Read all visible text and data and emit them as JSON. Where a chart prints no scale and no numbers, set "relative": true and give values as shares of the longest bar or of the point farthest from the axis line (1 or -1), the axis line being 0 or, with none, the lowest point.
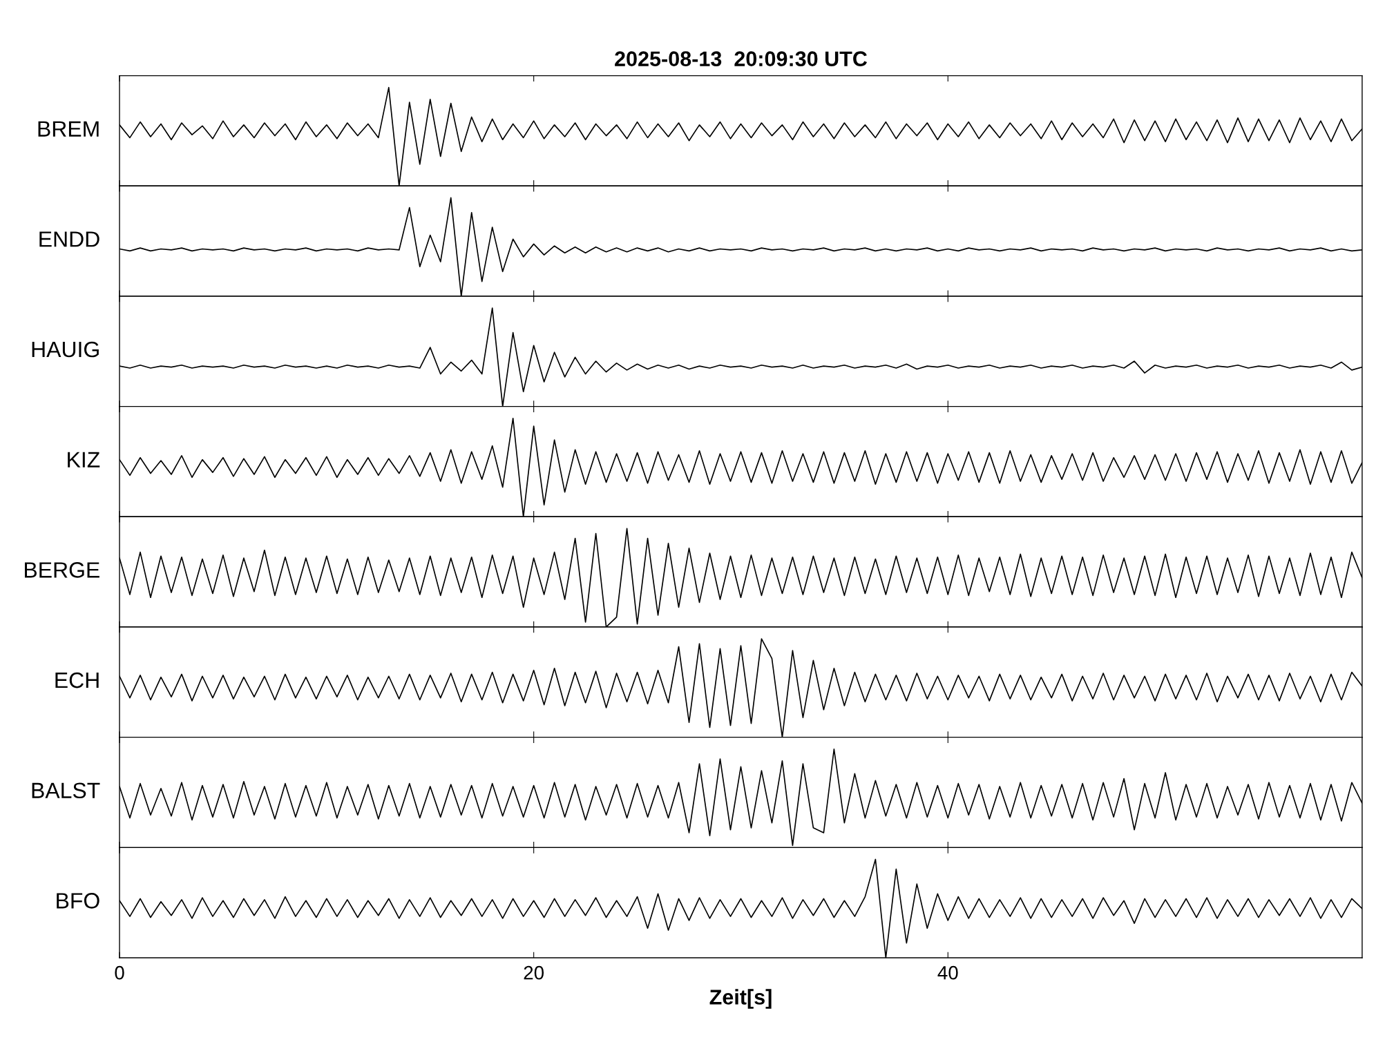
{
  "chart_data": [
    {
      "type": "line",
      "title": "2025-08-13  20:09:30 UTC",
      "ylabel": "BREM",
      "relative": true,
      "xlim": [
        0,
        60
      ],
      "xticks": [
        0,
        20,
        40
      ],
      "tick_labels": false,
      "grid": false,
      "legend": false,
      "x": [
        0,
        0.5,
        1,
        1.5,
        2,
        2.5,
        3,
        3.5,
        4,
        4.5,
        5,
        5.5,
        6,
        6.5,
        7,
        7.5,
        8,
        8.5,
        9,
        9.5,
        10,
        10.5,
        11,
        11.5,
        12,
        12.5,
        13,
        13.5,
        14,
        14.5,
        15,
        15.5,
        16,
        16.5,
        17,
        17.5,
        18,
        18.5,
        19,
        19.5,
        20,
        20.5,
        21,
        21.5,
        22,
        22.5,
        23,
        23.5,
        24,
        24.5,
        25,
        25.5,
        26,
        26.5,
        27,
        27.5,
        28,
        28.5,
        29,
        29.5,
        30,
        30.5,
        31,
        31.5,
        32,
        32.5,
        33,
        33.5,
        34,
        34.5,
        35,
        35.5,
        36,
        36.5,
        37,
        37.5,
        38,
        38.5,
        39,
        39.5,
        40,
        40.5,
        41,
        41.5,
        42,
        42.5,
        43,
        43.5,
        44,
        44.5,
        45,
        45.5,
        46,
        46.5,
        47,
        47.5,
        48,
        48.5,
        49,
        49.5,
        50,
        50.5,
        51,
        51.5,
        52,
        52.5,
        53,
        53.5,
        54,
        54.5,
        55,
        55.5,
        56,
        56.5,
        57,
        57.5,
        58,
        58.5,
        59,
        59.5,
        60
      ],
      "series": [
        {
          "color": "#000000",
          "values": [
            0.62,
            0.49,
            0.65,
            0.5,
            0.63,
            0.47,
            0.64,
            0.52,
            0.61,
            0.48,
            0.66,
            0.5,
            0.62,
            0.49,
            0.64,
            0.51,
            0.63,
            0.47,
            0.65,
            0.5,
            0.62,
            0.48,
            0.64,
            0.51,
            0.63,
            0.49,
            1.0,
            0.0,
            0.85,
            0.22,
            0.88,
            0.3,
            0.84,
            0.35,
            0.7,
            0.45,
            0.68,
            0.47,
            0.63,
            0.49,
            0.66,
            0.48,
            0.62,
            0.5,
            0.64,
            0.47,
            0.63,
            0.51,
            0.62,
            0.48,
            0.65,
            0.49,
            0.63,
            0.5,
            0.64,
            0.46,
            0.62,
            0.5,
            0.65,
            0.48,
            0.63,
            0.49,
            0.64,
            0.51,
            0.62,
            0.47,
            0.65,
            0.5,
            0.63,
            0.48,
            0.64,
            0.5,
            0.62,
            0.49,
            0.65,
            0.48,
            0.63,
            0.51,
            0.64,
            0.47,
            0.63,
            0.5,
            0.65,
            0.48,
            0.62,
            0.49,
            0.64,
            0.51,
            0.63,
            0.48,
            0.66,
            0.47,
            0.64,
            0.5,
            0.63,
            0.49,
            0.68,
            0.44,
            0.67,
            0.46,
            0.66,
            0.45,
            0.68,
            0.47,
            0.65,
            0.46,
            0.67,
            0.44,
            0.69,
            0.45,
            0.68,
            0.46,
            0.67,
            0.44,
            0.69,
            0.47,
            0.66,
            0.45,
            0.68,
            0.46,
            0.58
          ]
        }
      ]
    },
    {
      "type": "line",
      "ylabel": "ENDD",
      "relative": true,
      "xlim": [
        0,
        60
      ],
      "xticks": [
        0,
        20,
        40
      ],
      "tick_labels": false,
      "grid": false,
      "legend": false,
      "x": [
        0,
        0.5,
        1,
        1.5,
        2,
        2.5,
        3,
        3.5,
        4,
        4.5,
        5,
        5.5,
        6,
        6.5,
        7,
        7.5,
        8,
        8.5,
        9,
        9.5,
        10,
        10.5,
        11,
        11.5,
        12,
        12.5,
        13,
        13.5,
        14,
        14.5,
        15,
        15.5,
        16,
        16.5,
        17,
        17.5,
        18,
        18.5,
        19,
        19.5,
        20,
        20.5,
        21,
        21.5,
        22,
        22.5,
        23,
        23.5,
        24,
        24.5,
        25,
        25.5,
        26,
        26.5,
        27,
        27.5,
        28,
        28.5,
        29,
        29.5,
        30,
        30.5,
        31,
        31.5,
        32,
        32.5,
        33,
        33.5,
        34,
        34.5,
        35,
        35.5,
        36,
        36.5,
        37,
        37.5,
        38,
        38.5,
        39,
        39.5,
        40,
        40.5,
        41,
        41.5,
        42,
        42.5,
        43,
        43.5,
        44,
        44.5,
        45,
        45.5,
        46,
        46.5,
        47,
        47.5,
        48,
        48.5,
        49,
        49.5,
        50,
        50.5,
        51,
        51.5,
        52,
        52.5,
        53,
        53.5,
        54,
        54.5,
        55,
        55.5,
        56,
        56.5,
        57,
        57.5,
        58,
        58.5,
        59,
        59.5,
        60
      ],
      "series": [
        {
          "color": "#000000",
          "values": [
            0.48,
            0.46,
            0.49,
            0.46,
            0.48,
            0.47,
            0.49,
            0.46,
            0.48,
            0.47,
            0.48,
            0.46,
            0.49,
            0.47,
            0.48,
            0.46,
            0.48,
            0.47,
            0.49,
            0.46,
            0.48,
            0.47,
            0.48,
            0.46,
            0.49,
            0.47,
            0.48,
            0.47,
            0.9,
            0.3,
            0.62,
            0.35,
            1.0,
            0.0,
            0.85,
            0.15,
            0.7,
            0.25,
            0.58,
            0.4,
            0.53,
            0.42,
            0.51,
            0.44,
            0.5,
            0.44,
            0.5,
            0.45,
            0.49,
            0.45,
            0.49,
            0.46,
            0.49,
            0.45,
            0.48,
            0.46,
            0.49,
            0.46,
            0.48,
            0.47,
            0.48,
            0.46,
            0.49,
            0.47,
            0.48,
            0.46,
            0.48,
            0.47,
            0.49,
            0.46,
            0.48,
            0.47,
            0.49,
            0.46,
            0.48,
            0.46,
            0.48,
            0.47,
            0.49,
            0.46,
            0.48,
            0.46,
            0.49,
            0.47,
            0.48,
            0.46,
            0.48,
            0.47,
            0.49,
            0.46,
            0.48,
            0.47,
            0.48,
            0.46,
            0.49,
            0.47,
            0.48,
            0.46,
            0.48,
            0.47,
            0.49,
            0.46,
            0.48,
            0.47,
            0.48,
            0.46,
            0.49,
            0.47,
            0.48,
            0.46,
            0.48,
            0.47,
            0.49,
            0.46,
            0.48,
            0.47,
            0.49,
            0.46,
            0.48,
            0.46,
            0.47
          ]
        }
      ]
    },
    {
      "type": "line",
      "ylabel": "HAUIG",
      "relative": true,
      "xlim": [
        0,
        60
      ],
      "xticks": [
        0,
        20,
        40
      ],
      "tick_labels": false,
      "grid": false,
      "legend": false,
      "x": [
        0,
        0.5,
        1,
        1.5,
        2,
        2.5,
        3,
        3.5,
        4,
        4.5,
        5,
        5.5,
        6,
        6.5,
        7,
        7.5,
        8,
        8.5,
        9,
        9.5,
        10,
        10.5,
        11,
        11.5,
        12,
        12.5,
        13,
        13.5,
        14,
        14.5,
        15,
        15.5,
        16,
        16.5,
        17,
        17.5,
        18,
        18.5,
        19,
        19.5,
        20,
        20.5,
        21,
        21.5,
        22,
        22.5,
        23,
        23.5,
        24,
        24.5,
        25,
        25.5,
        26,
        26.5,
        27,
        27.5,
        28,
        28.5,
        29,
        29.5,
        30,
        30.5,
        31,
        31.5,
        32,
        32.5,
        33,
        33.5,
        34,
        34.5,
        35,
        35.5,
        36,
        36.5,
        37,
        37.5,
        38,
        38.5,
        39,
        39.5,
        40,
        40.5,
        41,
        41.5,
        42,
        42.5,
        43,
        43.5,
        44,
        44.5,
        45,
        45.5,
        46,
        46.5,
        47,
        47.5,
        48,
        48.5,
        49,
        49.5,
        50,
        50.5,
        51,
        51.5,
        52,
        52.5,
        53,
        53.5,
        54,
        54.5,
        55,
        55.5,
        56,
        56.5,
        57,
        57.5,
        58,
        58.5,
        59,
        59.5,
        60
      ],
      "series": [
        {
          "color": "#000000",
          "values": [
            0.41,
            0.39,
            0.42,
            0.39,
            0.41,
            0.4,
            0.42,
            0.39,
            0.41,
            0.4,
            0.41,
            0.39,
            0.42,
            0.4,
            0.41,
            0.39,
            0.42,
            0.4,
            0.41,
            0.39,
            0.41,
            0.39,
            0.42,
            0.4,
            0.41,
            0.39,
            0.42,
            0.4,
            0.41,
            0.39,
            0.6,
            0.33,
            0.45,
            0.36,
            0.47,
            0.33,
            1.0,
            0.0,
            0.75,
            0.15,
            0.62,
            0.25,
            0.55,
            0.3,
            0.5,
            0.33,
            0.46,
            0.35,
            0.44,
            0.37,
            0.43,
            0.38,
            0.42,
            0.39,
            0.42,
            0.38,
            0.41,
            0.39,
            0.42,
            0.4,
            0.41,
            0.39,
            0.42,
            0.4,
            0.41,
            0.39,
            0.42,
            0.39,
            0.41,
            0.4,
            0.42,
            0.39,
            0.41,
            0.4,
            0.42,
            0.39,
            0.43,
            0.38,
            0.41,
            0.4,
            0.42,
            0.39,
            0.41,
            0.4,
            0.42,
            0.39,
            0.41,
            0.4,
            0.42,
            0.39,
            0.41,
            0.4,
            0.42,
            0.39,
            0.41,
            0.4,
            0.42,
            0.39,
            0.46,
            0.34,
            0.42,
            0.39,
            0.41,
            0.4,
            0.42,
            0.39,
            0.41,
            0.4,
            0.42,
            0.39,
            0.41,
            0.4,
            0.42,
            0.39,
            0.41,
            0.4,
            0.42,
            0.39,
            0.45,
            0.37,
            0.4
          ]
        }
      ]
    },
    {
      "type": "line",
      "ylabel": "KIZ",
      "relative": true,
      "xlim": [
        0,
        60
      ],
      "xticks": [
        0,
        20,
        40
      ],
      "tick_labels": false,
      "grid": false,
      "legend": false,
      "x": [
        0,
        0.5,
        1,
        1.5,
        2,
        2.5,
        3,
        3.5,
        4,
        4.5,
        5,
        5.5,
        6,
        6.5,
        7,
        7.5,
        8,
        8.5,
        9,
        9.5,
        10,
        10.5,
        11,
        11.5,
        12,
        12.5,
        13,
        13.5,
        14,
        14.5,
        15,
        15.5,
        16,
        16.5,
        17,
        17.5,
        18,
        18.5,
        19,
        19.5,
        20,
        20.5,
        21,
        21.5,
        22,
        22.5,
        23,
        23.5,
        24,
        24.5,
        25,
        25.5,
        26,
        26.5,
        27,
        27.5,
        28,
        28.5,
        29,
        29.5,
        30,
        30.5,
        31,
        31.5,
        32,
        32.5,
        33,
        33.5,
        34,
        34.5,
        35,
        35.5,
        36,
        36.5,
        37,
        37.5,
        38,
        38.5,
        39,
        39.5,
        40,
        40.5,
        41,
        41.5,
        42,
        42.5,
        43,
        43.5,
        44,
        44.5,
        45,
        45.5,
        46,
        46.5,
        47,
        47.5,
        48,
        48.5,
        49,
        49.5,
        50,
        50.5,
        51,
        51.5,
        52,
        52.5,
        53,
        53.5,
        54,
        54.5,
        55,
        55.5,
        56,
        56.5,
        57,
        57.5,
        58,
        58.5,
        59,
        59.5,
        60
      ],
      "series": [
        {
          "color": "#000000",
          "values": [
            0.58,
            0.42,
            0.6,
            0.44,
            0.57,
            0.43,
            0.62,
            0.4,
            0.58,
            0.45,
            0.6,
            0.41,
            0.59,
            0.43,
            0.61,
            0.4,
            0.58,
            0.44,
            0.6,
            0.42,
            0.61,
            0.4,
            0.58,
            0.43,
            0.6,
            0.42,
            0.59,
            0.44,
            0.62,
            0.41,
            0.65,
            0.36,
            0.68,
            0.34,
            0.66,
            0.38,
            0.72,
            0.3,
            1.0,
            0.0,
            0.92,
            0.12,
            0.78,
            0.25,
            0.68,
            0.33,
            0.66,
            0.35,
            0.64,
            0.36,
            0.65,
            0.34,
            0.66,
            0.37,
            0.63,
            0.35,
            0.67,
            0.33,
            0.64,
            0.36,
            0.66,
            0.35,
            0.65,
            0.34,
            0.67,
            0.36,
            0.64,
            0.35,
            0.66,
            0.34,
            0.65,
            0.36,
            0.67,
            0.33,
            0.64,
            0.35,
            0.66,
            0.36,
            0.65,
            0.34,
            0.64,
            0.37,
            0.66,
            0.35,
            0.65,
            0.34,
            0.67,
            0.36,
            0.63,
            0.35,
            0.62,
            0.38,
            0.64,
            0.37,
            0.65,
            0.36,
            0.6,
            0.4,
            0.62,
            0.38,
            0.63,
            0.37,
            0.64,
            0.36,
            0.65,
            0.38,
            0.66,
            0.35,
            0.64,
            0.37,
            0.67,
            0.34,
            0.65,
            0.36,
            0.68,
            0.33,
            0.66,
            0.35,
            0.67,
            0.34,
            0.55
          ]
        }
      ]
    },
    {
      "type": "line",
      "ylabel": "BERGE",
      "relative": true,
      "xlim": [
        0,
        60
      ],
      "xticks": [
        0,
        20,
        40
      ],
      "tick_labels": false,
      "grid": false,
      "legend": false,
      "x": [
        0,
        0.5,
        1,
        1.5,
        2,
        2.5,
        3,
        3.5,
        4,
        4.5,
        5,
        5.5,
        6,
        6.5,
        7,
        7.5,
        8,
        8.5,
        9,
        9.5,
        10,
        10.5,
        11,
        11.5,
        12,
        12.5,
        13,
        13.5,
        14,
        14.5,
        15,
        15.5,
        16,
        16.5,
        17,
        17.5,
        18,
        18.5,
        19,
        19.5,
        20,
        20.5,
        21,
        21.5,
        22,
        22.5,
        23,
        23.5,
        24,
        24.5,
        25,
        25.5,
        26,
        26.5,
        27,
        27.5,
        28,
        28.5,
        29,
        29.5,
        30,
        30.5,
        31,
        31.5,
        32,
        32.5,
        33,
        33.5,
        34,
        34.5,
        35,
        35.5,
        36,
        36.5,
        37,
        37.5,
        38,
        38.5,
        39,
        39.5,
        40,
        40.5,
        41,
        41.5,
        42,
        42.5,
        43,
        43.5,
        44,
        44.5,
        45,
        45.5,
        46,
        46.5,
        47,
        47.5,
        48,
        48.5,
        49,
        49.5,
        50,
        50.5,
        51,
        51.5,
        52,
        52.5,
        53,
        53.5,
        54,
        54.5,
        55,
        55.5,
        56,
        56.5,
        57,
        57.5,
        58,
        58.5,
        59,
        59.5,
        60
      ],
      "series": [
        {
          "color": "#000000",
          "values": [
            0.7,
            0.33,
            0.76,
            0.3,
            0.72,
            0.35,
            0.71,
            0.32,
            0.69,
            0.34,
            0.73,
            0.31,
            0.7,
            0.36,
            0.78,
            0.32,
            0.71,
            0.33,
            0.7,
            0.35,
            0.72,
            0.34,
            0.69,
            0.33,
            0.71,
            0.35,
            0.68,
            0.36,
            0.7,
            0.33,
            0.72,
            0.32,
            0.7,
            0.35,
            0.71,
            0.3,
            0.73,
            0.34,
            0.72,
            0.2,
            0.7,
            0.33,
            0.76,
            0.28,
            0.9,
            0.05,
            0.95,
            0.0,
            0.1,
            1.0,
            0.03,
            0.9,
            0.12,
            0.85,
            0.2,
            0.8,
            0.25,
            0.75,
            0.28,
            0.72,
            0.3,
            0.73,
            0.32,
            0.7,
            0.34,
            0.71,
            0.33,
            0.72,
            0.35,
            0.7,
            0.32,
            0.71,
            0.34,
            0.69,
            0.33,
            0.72,
            0.35,
            0.7,
            0.34,
            0.71,
            0.33,
            0.73,
            0.32,
            0.7,
            0.36,
            0.71,
            0.33,
            0.74,
            0.31,
            0.7,
            0.34,
            0.72,
            0.33,
            0.71,
            0.32,
            0.73,
            0.35,
            0.7,
            0.33,
            0.72,
            0.32,
            0.74,
            0.3,
            0.71,
            0.34,
            0.72,
            0.33,
            0.7,
            0.35,
            0.73,
            0.31,
            0.72,
            0.34,
            0.7,
            0.32,
            0.75,
            0.33,
            0.71,
            0.3,
            0.76,
            0.5
          ]
        }
      ]
    },
    {
      "type": "line",
      "ylabel": "ECH",
      "relative": true,
      "xlim": [
        0,
        60
      ],
      "xticks": [
        0,
        20,
        40
      ],
      "tick_labels": false,
      "grid": false,
      "legend": false,
      "x": [
        0,
        0.5,
        1,
        1.5,
        2,
        2.5,
        3,
        3.5,
        4,
        4.5,
        5,
        5.5,
        6,
        6.5,
        7,
        7.5,
        8,
        8.5,
        9,
        9.5,
        10,
        10.5,
        11,
        11.5,
        12,
        12.5,
        13,
        13.5,
        14,
        14.5,
        15,
        15.5,
        16,
        16.5,
        17,
        17.5,
        18,
        18.5,
        19,
        19.5,
        20,
        20.5,
        21,
        21.5,
        22,
        22.5,
        23,
        23.5,
        24,
        24.5,
        25,
        25.5,
        26,
        26.5,
        27,
        27.5,
        28,
        28.5,
        29,
        29.5,
        30,
        30.5,
        31,
        31.5,
        32,
        32.5,
        33,
        33.5,
        34,
        34.5,
        35,
        35.5,
        36,
        36.5,
        37,
        37.5,
        38,
        38.5,
        39,
        39.5,
        40,
        40.5,
        41,
        41.5,
        42,
        42.5,
        43,
        43.5,
        44,
        44.5,
        45,
        45.5,
        46,
        46.5,
        47,
        47.5,
        48,
        48.5,
        49,
        49.5,
        50,
        50.5,
        51,
        51.5,
        52,
        52.5,
        53,
        53.5,
        54,
        54.5,
        55,
        55.5,
        56,
        56.5,
        57,
        57.5,
        58,
        58.5,
        59,
        59.5,
        60
      ],
      "series": [
        {
          "color": "#000000",
          "values": [
            0.62,
            0.4,
            0.63,
            0.38,
            0.61,
            0.41,
            0.64,
            0.37,
            0.62,
            0.4,
            0.63,
            0.39,
            0.61,
            0.41,
            0.62,
            0.38,
            0.64,
            0.4,
            0.61,
            0.39,
            0.62,
            0.41,
            0.63,
            0.38,
            0.61,
            0.4,
            0.62,
            0.39,
            0.64,
            0.38,
            0.63,
            0.4,
            0.65,
            0.36,
            0.64,
            0.38,
            0.66,
            0.35,
            0.64,
            0.37,
            0.68,
            0.33,
            0.7,
            0.32,
            0.66,
            0.35,
            0.67,
            0.3,
            0.65,
            0.36,
            0.66,
            0.34,
            0.68,
            0.35,
            0.92,
            0.15,
            0.95,
            0.1,
            0.9,
            0.12,
            0.93,
            0.14,
            1.0,
            0.8,
            0.0,
            0.88,
            0.2,
            0.78,
            0.28,
            0.7,
            0.32,
            0.66,
            0.36,
            0.64,
            0.38,
            0.63,
            0.37,
            0.65,
            0.39,
            0.62,
            0.38,
            0.63,
            0.4,
            0.62,
            0.37,
            0.64,
            0.39,
            0.63,
            0.38,
            0.61,
            0.4,
            0.64,
            0.37,
            0.62,
            0.39,
            0.65,
            0.38,
            0.63,
            0.4,
            0.62,
            0.37,
            0.64,
            0.39,
            0.63,
            0.38,
            0.65,
            0.36,
            0.62,
            0.4,
            0.64,
            0.38,
            0.63,
            0.37,
            0.65,
            0.39,
            0.62,
            0.36,
            0.64,
            0.38,
            0.66,
            0.52
          ]
        }
      ]
    },
    {
      "type": "line",
      "ylabel": "BALST",
      "relative": true,
      "xlim": [
        0,
        60
      ],
      "xticks": [
        0,
        20,
        40
      ],
      "tick_labels": false,
      "grid": false,
      "legend": false,
      "x": [
        0,
        0.5,
        1,
        1.5,
        2,
        2.5,
        3,
        3.5,
        4,
        4.5,
        5,
        5.5,
        6,
        6.5,
        7,
        7.5,
        8,
        8.5,
        9,
        9.5,
        10,
        10.5,
        11,
        11.5,
        12,
        12.5,
        13,
        13.5,
        14,
        14.5,
        15,
        15.5,
        16,
        16.5,
        17,
        17.5,
        18,
        18.5,
        19,
        19.5,
        20,
        20.5,
        21,
        21.5,
        22,
        22.5,
        23,
        23.5,
        24,
        24.5,
        25,
        25.5,
        26,
        26.5,
        27,
        27.5,
        28,
        28.5,
        29,
        29.5,
        30,
        30.5,
        31,
        31.5,
        32,
        32.5,
        33,
        33.5,
        34,
        34.5,
        35,
        35.5,
        36,
        36.5,
        37,
        37.5,
        38,
        38.5,
        39,
        39.5,
        40,
        40.5,
        41,
        41.5,
        42,
        42.5,
        43,
        43.5,
        44,
        44.5,
        45,
        45.5,
        46,
        46.5,
        47,
        47.5,
        48,
        48.5,
        49,
        49.5,
        50,
        50.5,
        51,
        51.5,
        52,
        52.5,
        53,
        53.5,
        54,
        54.5,
        55,
        55.5,
        56,
        56.5,
        57,
        57.5,
        58,
        58.5,
        59,
        59.5,
        60
      ],
      "series": [
        {
          "color": "#000000",
          "values": [
            0.62,
            0.3,
            0.65,
            0.33,
            0.6,
            0.32,
            0.66,
            0.28,
            0.63,
            0.31,
            0.64,
            0.3,
            0.67,
            0.33,
            0.62,
            0.29,
            0.65,
            0.31,
            0.63,
            0.32,
            0.66,
            0.3,
            0.62,
            0.33,
            0.64,
            0.29,
            0.63,
            0.32,
            0.65,
            0.3,
            0.62,
            0.31,
            0.64,
            0.33,
            0.63,
            0.3,
            0.65,
            0.32,
            0.62,
            0.31,
            0.63,
            0.3,
            0.66,
            0.31,
            0.64,
            0.28,
            0.62,
            0.33,
            0.64,
            0.3,
            0.65,
            0.31,
            0.63,
            0.3,
            0.66,
            0.15,
            0.85,
            0.12,
            0.9,
            0.18,
            0.82,
            0.2,
            0.78,
            0.25,
            0.88,
            0.02,
            0.85,
            0.2,
            0.15,
            1.0,
            0.25,
            0.75,
            0.3,
            0.68,
            0.32,
            0.64,
            0.3,
            0.66,
            0.31,
            0.63,
            0.3,
            0.65,
            0.33,
            0.64,
            0.29,
            0.62,
            0.31,
            0.66,
            0.3,
            0.63,
            0.32,
            0.64,
            0.3,
            0.65,
            0.28,
            0.66,
            0.31,
            0.7,
            0.18,
            0.65,
            0.3,
            0.76,
            0.28,
            0.64,
            0.31,
            0.65,
            0.3,
            0.62,
            0.33,
            0.64,
            0.29,
            0.66,
            0.31,
            0.63,
            0.3,
            0.65,
            0.28,
            0.64,
            0.27,
            0.66,
            0.45
          ]
        }
      ]
    },
    {
      "type": "line",
      "ylabel": "BFO",
      "xlabel": "Zeit[s]",
      "relative": true,
      "xlim": [
        0,
        60
      ],
      "xticks": [
        0,
        20,
        40
      ],
      "tick_labels": "x",
      "grid": false,
      "legend": false,
      "x": [
        0,
        0.5,
        1,
        1.5,
        2,
        2.5,
        3,
        3.5,
        4,
        4.5,
        5,
        5.5,
        6,
        6.5,
        7,
        7.5,
        8,
        8.5,
        9,
        9.5,
        10,
        10.5,
        11,
        11.5,
        12,
        12.5,
        13,
        13.5,
        14,
        14.5,
        15,
        15.5,
        16,
        16.5,
        17,
        17.5,
        18,
        18.5,
        19,
        19.5,
        20,
        20.5,
        21,
        21.5,
        22,
        22.5,
        23,
        23.5,
        24,
        24.5,
        25,
        25.5,
        26,
        26.5,
        27,
        27.5,
        28,
        28.5,
        29,
        29.5,
        30,
        30.5,
        31,
        31.5,
        32,
        32.5,
        33,
        33.5,
        34,
        34.5,
        35,
        35.5,
        36,
        36.5,
        37,
        37.5,
        38,
        38.5,
        39,
        39.5,
        40,
        40.5,
        41,
        41.5,
        42,
        42.5,
        43,
        43.5,
        44,
        44.5,
        45,
        45.5,
        46,
        46.5,
        47,
        47.5,
        48,
        48.5,
        49,
        49.5,
        50,
        50.5,
        51,
        51.5,
        52,
        52.5,
        53,
        53.5,
        54,
        54.5,
        55,
        55.5,
        56,
        56.5,
        57,
        57.5,
        58,
        58.5,
        59,
        59.5,
        60
      ],
      "series": [
        {
          "color": "#000000",
          "values": [
            0.58,
            0.42,
            0.6,
            0.41,
            0.57,
            0.43,
            0.59,
            0.4,
            0.61,
            0.42,
            0.58,
            0.41,
            0.6,
            0.43,
            0.59,
            0.4,
            0.62,
            0.42,
            0.58,
            0.41,
            0.6,
            0.42,
            0.59,
            0.41,
            0.58,
            0.43,
            0.6,
            0.4,
            0.59,
            0.42,
            0.61,
            0.41,
            0.58,
            0.43,
            0.6,
            0.42,
            0.59,
            0.4,
            0.6,
            0.42,
            0.58,
            0.41,
            0.6,
            0.42,
            0.59,
            0.43,
            0.61,
            0.41,
            0.58,
            0.42,
            0.62,
            0.3,
            0.65,
            0.28,
            0.6,
            0.38,
            0.61,
            0.4,
            0.59,
            0.42,
            0.6,
            0.41,
            0.58,
            0.42,
            0.61,
            0.4,
            0.59,
            0.43,
            0.6,
            0.41,
            0.58,
            0.42,
            0.62,
            1.0,
            0.0,
            0.9,
            0.15,
            0.75,
            0.3,
            0.65,
            0.38,
            0.62,
            0.4,
            0.6,
            0.41,
            0.59,
            0.42,
            0.61,
            0.4,
            0.6,
            0.41,
            0.59,
            0.42,
            0.6,
            0.4,
            0.61,
            0.43,
            0.58,
            0.35,
            0.6,
            0.41,
            0.59,
            0.42,
            0.6,
            0.41,
            0.61,
            0.4,
            0.59,
            0.42,
            0.6,
            0.41,
            0.59,
            0.43,
            0.6,
            0.42,
            0.61,
            0.4,
            0.59,
            0.41,
            0.6,
            0.5
          ]
        }
      ]
    }
  ]
}
